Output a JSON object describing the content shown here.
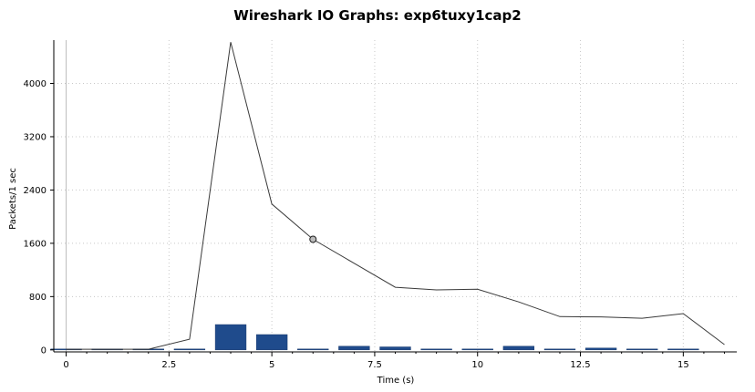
{
  "chart_data": {
    "type": "line",
    "title": "Wireshark IO Graphs: exp6tuxy1cap2",
    "xlabel": "Time (s)",
    "ylabel": "Packets/1 sec",
    "xlim": [
      -0.3,
      16.3
    ],
    "ylim": [
      -30,
      4650
    ],
    "x_ticks": [
      0,
      2.5,
      5,
      7.5,
      10,
      12.5,
      15
    ],
    "y_ticks": [
      0,
      800,
      1600,
      2400,
      3200,
      4000
    ],
    "grid": true,
    "series": [
      {
        "type": "line",
        "color": "#3a3a3a",
        "x": [
          0,
          1,
          2,
          3,
          4,
          5,
          6,
          7,
          8,
          9,
          10,
          11,
          12,
          13,
          14,
          15,
          16
        ],
        "values": [
          10,
          10,
          10,
          160,
          4620,
          2190,
          1660,
          1300,
          940,
          900,
          910,
          720,
          500,
          495,
          475,
          545,
          80
        ]
      },
      {
        "type": "bar",
        "color": "#1f4b8c",
        "x": [
          0,
          1,
          2,
          3,
          4,
          5,
          6,
          7,
          8,
          9,
          10,
          11,
          12,
          13,
          14,
          15
        ],
        "values": [
          8,
          6,
          6,
          6,
          380,
          230,
          6,
          55,
          45,
          6,
          6,
          55,
          6,
          28,
          6,
          6
        ]
      }
    ],
    "marker": {
      "x": 6,
      "y": 1660
    }
  }
}
